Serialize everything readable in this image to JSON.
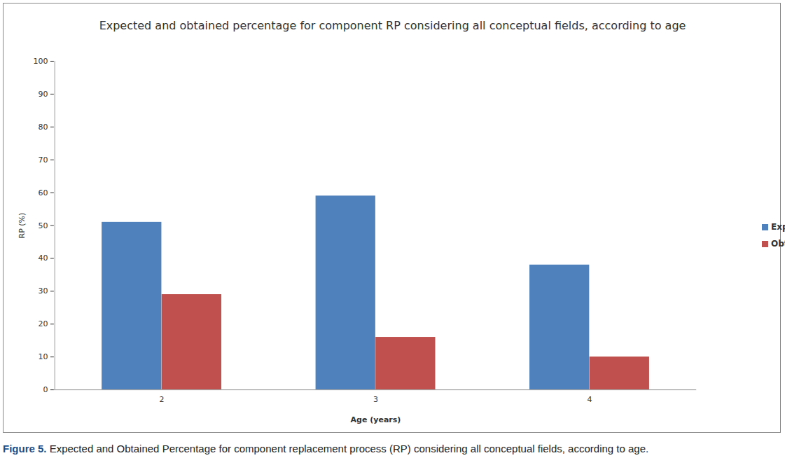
{
  "chart_data": {
    "type": "bar",
    "title": "Expected and obtained percentage for component RP considering all conceptual fields, according to age",
    "x_label": "Age (years)",
    "y_label": "RP (%)",
    "categories": [
      "2",
      "3",
      "4"
    ],
    "series": [
      {
        "name": "Expected",
        "color": "#4f81bd",
        "values": [
          51,
          59,
          38
        ]
      },
      {
        "name": "Obtained",
        "color": "#c0504d",
        "values": [
          29,
          16,
          10
        ]
      }
    ],
    "ylim": [
      0,
      100
    ],
    "yticks": [
      0,
      10,
      20,
      30,
      40,
      50,
      60,
      70,
      80,
      90,
      100
    ],
    "grid": false,
    "legend": "right",
    "caption": {
      "label": "Figure 5.",
      "text": "Expected and Obtained Percentage for component replacement process (RP) considering all conceptual fields, according to age."
    }
  }
}
